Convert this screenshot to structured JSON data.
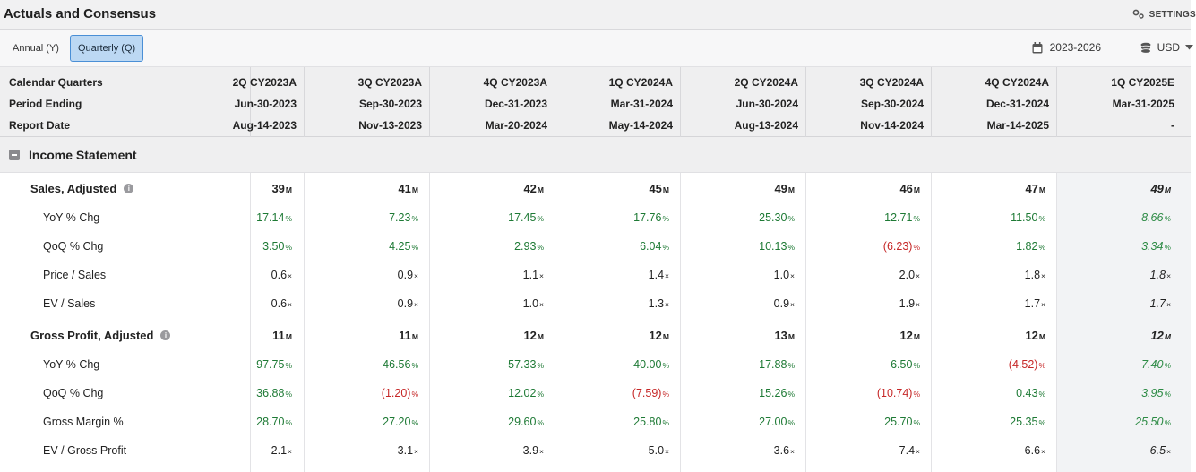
{
  "header": {
    "title": "Actuals and Consensus",
    "settings_label": "SETTINGS"
  },
  "toolbar": {
    "annual_label": "Annual (Y)",
    "quarterly_label": "Quarterly (Q)",
    "date_range": "2023-2026",
    "currency": "USD"
  },
  "table_header": {
    "row_labels": [
      "Calendar Quarters",
      "Period Ending",
      "Report Date"
    ],
    "columns": [
      {
        "quarter": "2Q CY2023A",
        "period_end": "Jun-30-2023",
        "report_date": "Aug-14-2023"
      },
      {
        "quarter": "3Q CY2023A",
        "period_end": "Sep-30-2023",
        "report_date": "Nov-13-2023"
      },
      {
        "quarter": "4Q CY2023A",
        "period_end": "Dec-31-2023",
        "report_date": "Mar-20-2024"
      },
      {
        "quarter": "1Q CY2024A",
        "period_end": "Mar-31-2024",
        "report_date": "May-14-2024"
      },
      {
        "quarter": "2Q CY2024A",
        "period_end": "Jun-30-2024",
        "report_date": "Aug-13-2024"
      },
      {
        "quarter": "3Q CY2024A",
        "period_end": "Sep-30-2024",
        "report_date": "Nov-14-2024"
      },
      {
        "quarter": "4Q CY2024A",
        "period_end": "Dec-31-2024",
        "report_date": "Mar-14-2025"
      },
      {
        "quarter": "1Q CY2025E",
        "period_end": "Mar-31-2025",
        "report_date": "-"
      }
    ]
  },
  "section": {
    "title": "Income Statement"
  },
  "rows": [
    {
      "label": "Sales, Adjusted",
      "bold": true,
      "info": true,
      "unit": "M",
      "values": [
        "39",
        "41",
        "42",
        "45",
        "49",
        "46",
        "47",
        "49"
      ],
      "tones": [
        "",
        "",
        "",
        "",
        "",
        "",
        "",
        ""
      ]
    },
    {
      "label": "YoY % Chg",
      "unit": "%",
      "values": [
        "17.14",
        "7.23",
        "17.45",
        "17.76",
        "25.30",
        "12.71",
        "11.50",
        "8.66"
      ],
      "tones": [
        "pos",
        "pos",
        "pos",
        "pos",
        "pos",
        "pos",
        "pos",
        "pos"
      ]
    },
    {
      "label": "QoQ % Chg",
      "unit": "%",
      "values": [
        "3.50",
        "4.25",
        "2.93",
        "6.04",
        "10.13",
        "(6.23)",
        "1.82",
        "3.34"
      ],
      "tones": [
        "pos",
        "pos",
        "pos",
        "pos",
        "pos",
        "neg",
        "pos",
        "pos"
      ]
    },
    {
      "label": "Price / Sales",
      "unit": "x",
      "values": [
        "0.6",
        "0.9",
        "1.1",
        "1.4",
        "1.0",
        "2.0",
        "1.8",
        "1.8"
      ],
      "tones": [
        "",
        "",
        "",
        "",
        "",
        "",
        "",
        ""
      ]
    },
    {
      "label": "EV / Sales",
      "unit": "x",
      "values": [
        "0.6",
        "0.9",
        "1.0",
        "1.3",
        "0.9",
        "1.9",
        "1.7",
        "1.7"
      ],
      "tones": [
        "",
        "",
        "",
        "",
        "",
        "",
        "",
        ""
      ]
    },
    {
      "label": "Gross Profit, Adjusted",
      "bold": true,
      "info": true,
      "unit": "M",
      "values": [
        "11",
        "11",
        "12",
        "12",
        "13",
        "12",
        "12",
        "12"
      ],
      "tones": [
        "",
        "",
        "",
        "",
        "",
        "",
        "",
        ""
      ]
    },
    {
      "label": "YoY % Chg",
      "unit": "%",
      "values": [
        "97.75",
        "46.56",
        "57.33",
        "40.00",
        "17.88",
        "6.50",
        "(4.52)",
        "7.40"
      ],
      "tones": [
        "pos",
        "pos",
        "pos",
        "pos",
        "pos",
        "pos",
        "neg",
        "pos"
      ]
    },
    {
      "label": "QoQ % Chg",
      "unit": "%",
      "values": [
        "36.88",
        "(1.20)",
        "12.02",
        "(7.59)",
        "15.26",
        "(10.74)",
        "0.43",
        "3.95"
      ],
      "tones": [
        "pos",
        "neg",
        "pos",
        "neg",
        "pos",
        "neg",
        "pos",
        "pos"
      ]
    },
    {
      "label": "Gross Margin %",
      "unit": "%",
      "values": [
        "28.70",
        "27.20",
        "29.60",
        "25.80",
        "27.00",
        "25.70",
        "25.35",
        "25.50"
      ],
      "tones": [
        "pos",
        "pos",
        "pos",
        "pos",
        "pos",
        "pos",
        "pos",
        "pos"
      ]
    },
    {
      "label": "EV / Gross Profit",
      "unit": "x",
      "values": [
        "2.1",
        "3.1",
        "3.9",
        "5.0",
        "3.6",
        "7.4",
        "6.6",
        "6.5"
      ],
      "tones": [
        "",
        "",
        "",
        "",
        "",
        "",
        "",
        ""
      ]
    }
  ],
  "colors": {
    "positive": "#1e7a35",
    "negative": "#c62828",
    "selected_tab": "#bcd8f3"
  }
}
